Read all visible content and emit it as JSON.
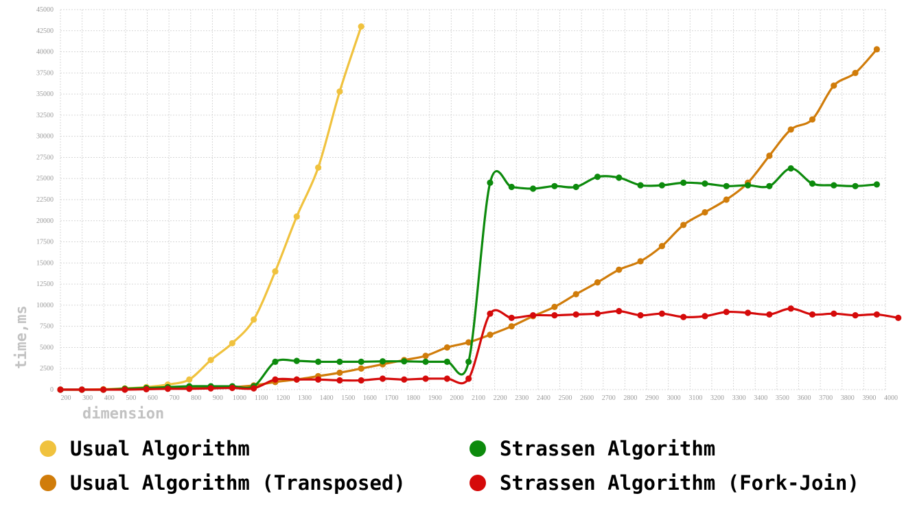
{
  "chart_data": {
    "type": "line",
    "title": "",
    "xlabel": "dimension",
    "ylabel": "time,ms",
    "xlim": [
      200,
      4000
    ],
    "ylim": [
      0,
      45000
    ],
    "x_ticks": [
      "200",
      "300",
      "400",
      "500",
      "600",
      "700",
      "800",
      "900",
      "1000",
      "1100",
      "1200",
      "1300",
      "1400",
      "1500",
      "1600",
      "1700",
      "1800",
      "1900",
      "2000",
      "2100",
      "2200",
      "2300",
      "2400",
      "2500",
      "2600",
      "2700",
      "2800",
      "2900",
      "3000",
      "3100",
      "3200",
      "3300",
      "3400",
      "3500",
      "3600",
      "3700",
      "3800",
      "3900",
      "4000"
    ],
    "y_ticks": [
      "0",
      "2500",
      "5000",
      "7500",
      "10000",
      "12500",
      "15000",
      "17500",
      "20000",
      "22500",
      "25000",
      "27500",
      "30000",
      "32500",
      "35000",
      "37500",
      "40000",
      "42500",
      "45000"
    ],
    "grid": true,
    "legend_position": "bottom",
    "series": [
      {
        "name": "Usual Algorithm",
        "color": "#f0c23e",
        "points": [
          [
            200,
            0
          ],
          [
            300,
            0
          ],
          [
            400,
            50
          ],
          [
            500,
            150
          ],
          [
            600,
            300
          ],
          [
            700,
            600
          ],
          [
            800,
            1200
          ],
          [
            900,
            3500
          ],
          [
            1000,
            5500
          ],
          [
            1100,
            8300
          ],
          [
            1200,
            14000
          ],
          [
            1300,
            20500
          ],
          [
            1400,
            26300
          ],
          [
            1500,
            35300
          ],
          [
            1600,
            43000
          ]
        ]
      },
      {
        "name": "Usual Algorithm (Transposed)",
        "color": "#d07c0a",
        "points": [
          [
            200,
            0
          ],
          [
            300,
            0
          ],
          [
            400,
            0
          ],
          [
            500,
            50
          ],
          [
            600,
            100
          ],
          [
            700,
            150
          ],
          [
            800,
            200
          ],
          [
            900,
            250
          ],
          [
            1000,
            300
          ],
          [
            1100,
            500
          ],
          [
            1200,
            900
          ],
          [
            1300,
            1200
          ],
          [
            1400,
            1600
          ],
          [
            1500,
            2000
          ],
          [
            1600,
            2500
          ],
          [
            1700,
            3000
          ],
          [
            1800,
            3500
          ],
          [
            1900,
            4000
          ],
          [
            2000,
            5000
          ],
          [
            2100,
            5600
          ],
          [
            2200,
            6500
          ],
          [
            2300,
            7500
          ],
          [
            2400,
            8700
          ],
          [
            2500,
            9800
          ],
          [
            2600,
            11300
          ],
          [
            2700,
            12700
          ],
          [
            2800,
            14200
          ],
          [
            2900,
            15200
          ],
          [
            3000,
            17000
          ],
          [
            3100,
            19500
          ],
          [
            3200,
            21000
          ],
          [
            3300,
            22500
          ],
          [
            3400,
            24500
          ],
          [
            3500,
            27700
          ],
          [
            3600,
            30800
          ],
          [
            3700,
            32000
          ],
          [
            3800,
            36000
          ],
          [
            3900,
            37500
          ],
          [
            4000,
            40300
          ]
        ]
      },
      {
        "name": "Strassen Algorithm",
        "color": "#0c8a0c",
        "points": [
          [
            200,
            0
          ],
          [
            300,
            0
          ],
          [
            400,
            0
          ],
          [
            500,
            100
          ],
          [
            600,
            200
          ],
          [
            700,
            300
          ],
          [
            800,
            400
          ],
          [
            900,
            400
          ],
          [
            1000,
            400
          ],
          [
            1100,
            400
          ],
          [
            1200,
            3300
          ],
          [
            1300,
            3400
          ],
          [
            1400,
            3300
          ],
          [
            1500,
            3300
          ],
          [
            1600,
            3300
          ],
          [
            1700,
            3350
          ],
          [
            1800,
            3350
          ],
          [
            1900,
            3300
          ],
          [
            2000,
            3300
          ],
          [
            2100,
            3300
          ],
          [
            2200,
            24500
          ],
          [
            2300,
            24000
          ],
          [
            2400,
            23800
          ],
          [
            2500,
            24100
          ],
          [
            2600,
            24000
          ],
          [
            2700,
            25200
          ],
          [
            2800,
            25100
          ],
          [
            2900,
            24200
          ],
          [
            3000,
            24200
          ],
          [
            3100,
            24500
          ],
          [
            3200,
            24400
          ],
          [
            3300,
            24100
          ],
          [
            3400,
            24200
          ],
          [
            3500,
            24100
          ],
          [
            3600,
            26200
          ],
          [
            3700,
            24400
          ],
          [
            3800,
            24200
          ],
          [
            3900,
            24100
          ],
          [
            4000,
            24300
          ]
        ]
      },
      {
        "name": "Strassen Algorithm (Fork-Join)",
        "color": "#d50a0a",
        "points": [
          [
            200,
            0
          ],
          [
            300,
            0
          ],
          [
            400,
            0
          ],
          [
            500,
            0
          ],
          [
            600,
            50
          ],
          [
            700,
            100
          ],
          [
            800,
            100
          ],
          [
            900,
            150
          ],
          [
            1000,
            200
          ],
          [
            1100,
            150
          ],
          [
            1200,
            1200
          ],
          [
            1300,
            1200
          ],
          [
            1400,
            1200
          ],
          [
            1500,
            1100
          ],
          [
            1600,
            1100
          ],
          [
            1700,
            1300
          ],
          [
            1800,
            1200
          ],
          [
            1900,
            1300
          ],
          [
            2000,
            1300
          ],
          [
            2100,
            1300
          ],
          [
            2200,
            9000
          ],
          [
            2300,
            8500
          ],
          [
            2400,
            8800
          ],
          [
            2500,
            8800
          ],
          [
            2600,
            8900
          ],
          [
            2700,
            9000
          ],
          [
            2800,
            9300
          ],
          [
            2900,
            8800
          ],
          [
            3000,
            9000
          ],
          [
            3100,
            8600
          ],
          [
            3200,
            8700
          ],
          [
            3300,
            9200
          ],
          [
            3400,
            9100
          ],
          [
            3500,
            8900
          ],
          [
            3600,
            9600
          ],
          [
            3700,
            8900
          ],
          [
            3800,
            9000
          ],
          [
            3900,
            8800
          ],
          [
            4000,
            8900
          ],
          [
            4100,
            8500
          ]
        ]
      }
    ]
  }
}
